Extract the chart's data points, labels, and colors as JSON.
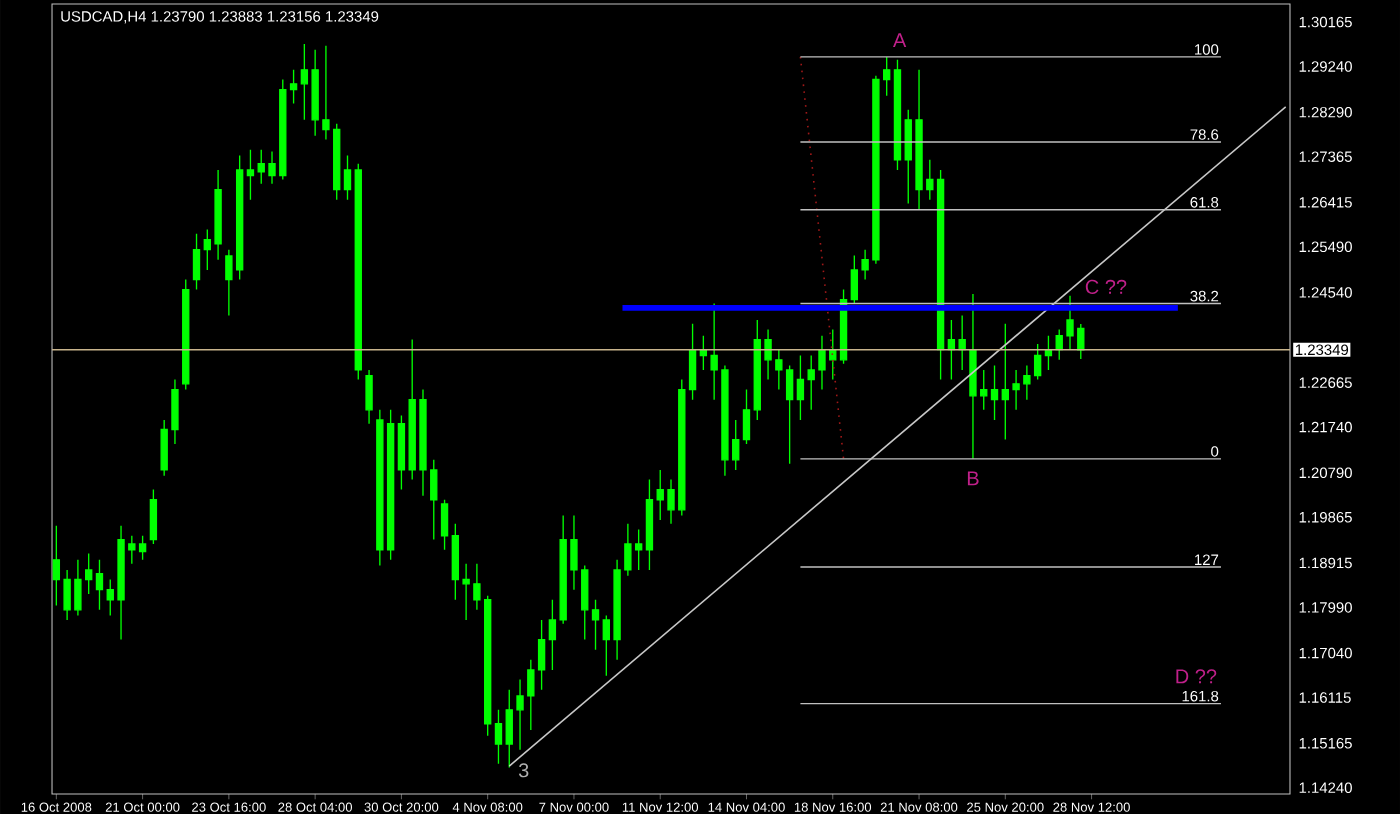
{
  "chart_data": {
    "type": "candlestick",
    "title": "USDCAD,H4 1.23790 1.23883 1.23156 1.23349",
    "categories": [
      "16 Oct 2008",
      null,
      null,
      null,
      null,
      null,
      null,
      null,
      "21 Oct 00:00",
      null,
      null,
      null,
      null,
      null,
      null,
      null,
      "23 Oct 16:00",
      null,
      null,
      null,
      null,
      null,
      null,
      null,
      "28 Oct 04:00",
      null,
      null,
      null,
      null,
      null,
      null,
      null,
      "30 Oct 20:00",
      null,
      null,
      null,
      null,
      null,
      null,
      null,
      "4 Nov 08:00",
      null,
      null,
      null,
      null,
      null,
      null,
      null,
      "7 Nov 00:00",
      null,
      null,
      null,
      null,
      null,
      null,
      null,
      "11 Nov 12:00",
      null,
      null,
      null,
      null,
      null,
      null,
      null,
      "14 Nov 04:00",
      null,
      null,
      null,
      null,
      null,
      null,
      null,
      "18 Nov 16:00",
      null,
      null,
      null,
      null,
      null,
      null,
      null,
      "21 Nov 08:00",
      null,
      null,
      null,
      null,
      null,
      null,
      null,
      "25 Nov 20:00",
      null,
      null,
      null,
      null,
      null,
      null,
      null,
      "28 Nov 12:00",
      null,
      null,
      null,
      null,
      null,
      null,
      null,
      null,
      null,
      null,
      null,
      null,
      null,
      null,
      null,
      null,
      null,
      null
    ],
    "ohlc": [
      [
        1.1857,
        1.1969,
        1.1803,
        1.1898
      ],
      [
        1.1857,
        1.1877,
        1.1773,
        1.1794
      ],
      [
        1.1794,
        1.1898,
        1.1782,
        1.1857
      ],
      [
        1.1857,
        1.1911,
        1.1827,
        1.1877
      ],
      [
        1.1869,
        1.1898,
        1.1794,
        1.1836
      ],
      [
        1.1836,
        1.1857,
        1.1782,
        1.1815
      ],
      [
        1.1815,
        1.1969,
        1.1732,
        1.194
      ],
      [
        1.1931,
        1.1948,
        1.189,
        1.1919
      ],
      [
        1.1915,
        1.1948,
        1.1898,
        1.1931
      ],
      [
        1.194,
        1.2044,
        1.1931,
        1.2023
      ],
      [
        1.2085,
        1.2189,
        1.2073,
        1.2169
      ],
      [
        1.2169,
        1.2273,
        1.2139,
        1.2252
      ],
      [
        1.2264,
        1.2481,
        1.2252,
        1.246
      ],
      [
        1.2481,
        1.2576,
        1.246,
        1.2543
      ],
      [
        1.2543,
        1.2585,
        1.2501,
        1.2564
      ],
      [
        1.2555,
        1.2709,
        1.2522,
        1.2668
      ],
      [
        1.253,
        1.2543,
        1.2406,
        1.2481
      ],
      [
        1.2501,
        1.2739,
        1.2481,
        1.2709
      ],
      [
        1.2709,
        1.2751,
        1.2647,
        1.2697
      ],
      [
        1.2705,
        1.2751,
        1.268,
        1.2722
      ],
      [
        1.2722,
        1.2747,
        1.268,
        1.2697
      ],
      [
        1.2697,
        1.2897,
        1.2689,
        1.2876
      ],
      [
        1.2876,
        1.2917,
        1.2847,
        1.2888
      ],
      [
        1.2888,
        1.2971,
        1.2813,
        1.2917
      ],
      [
        1.2917,
        1.2959,
        1.278,
        1.2813
      ],
      [
        1.2813,
        1.2967,
        1.2772,
        1.2793
      ],
      [
        1.2793,
        1.2805,
        1.2647,
        1.2668
      ],
      [
        1.2668,
        1.2739,
        1.2647,
        1.2709
      ],
      [
        1.2709,
        1.2722,
        1.2273,
        1.2293
      ],
      [
        1.2281,
        1.2293,
        1.2181,
        1.221
      ],
      [
        1.2189,
        1.221,
        1.1886,
        1.1919
      ],
      [
        1.1919,
        1.221,
        1.1898,
        1.2181
      ],
      [
        1.2181,
        1.2198,
        1.2044,
        1.2085
      ],
      [
        1.2085,
        1.2356,
        1.2065,
        1.2231
      ],
      [
        1.2231,
        1.2252,
        1.2031,
        1.2085
      ],
      [
        1.2085,
        1.2106,
        1.194,
        1.2023
      ],
      [
        1.2014,
        1.2023,
        1.1919,
        1.1948
      ],
      [
        1.1948,
        1.1973,
        1.1815,
        1.1857
      ],
      [
        1.1857,
        1.189,
        1.1773,
        1.1848
      ],
      [
        1.1848,
        1.189,
        1.1794,
        1.1815
      ],
      [
        1.1815,
        1.1823,
        1.1532,
        1.1557
      ],
      [
        1.1557,
        1.1586,
        1.1474,
        1.1515
      ],
      [
        1.1515,
        1.1628,
        1.1466,
        1.1586
      ],
      [
        1.1586,
        1.1649,
        1.1503,
        1.1615
      ],
      [
        1.1615,
        1.169,
        1.1544,
        1.1669
      ],
      [
        1.1669,
        1.1773,
        1.1628,
        1.1732
      ],
      [
        1.1732,
        1.1815,
        1.1669,
        1.1773
      ],
      [
        1.1773,
        1.199,
        1.1765,
        1.194
      ],
      [
        1.194,
        1.199,
        1.1836,
        1.1877
      ],
      [
        1.1877,
        1.1886,
        1.1732,
        1.1794
      ],
      [
        1.1794,
        1.1815,
        1.1711,
        1.1773
      ],
      [
        1.1773,
        1.1782,
        1.1657,
        1.1732
      ],
      [
        1.1732,
        1.1898,
        1.169,
        1.1877
      ],
      [
        1.1877,
        1.1973,
        1.1865,
        1.1931
      ],
      [
        1.1931,
        1.1961,
        1.1877,
        1.1919
      ],
      [
        1.1919,
        1.2065,
        1.1877,
        1.2023
      ],
      [
        1.2023,
        1.2085,
        1.1981,
        1.2044
      ],
      [
        1.2044,
        1.2065,
        1.1973,
        1.2002
      ],
      [
        1.2002,
        1.2273,
        1.199,
        1.2252
      ],
      [
        1.2252,
        1.2389,
        1.2231,
        1.2335
      ],
      [
        1.2335,
        1.2364,
        1.2293,
        1.2323
      ],
      [
        1.2323,
        1.2431,
        1.2231,
        1.2293
      ],
      [
        1.2293,
        1.2302,
        1.2073,
        1.2106
      ],
      [
        1.2106,
        1.2189,
        1.2085,
        1.2148
      ],
      [
        1.2148,
        1.2252,
        1.2139,
        1.221
      ],
      [
        1.221,
        1.2397,
        1.2189,
        1.2356
      ],
      [
        1.2356,
        1.2377,
        1.2273,
        1.2314
      ],
      [
        1.2314,
        1.2335,
        1.2252,
        1.2293
      ],
      [
        1.2293,
        1.2302,
        1.2098,
        1.2231
      ],
      [
        1.2231,
        1.2323,
        1.2189,
        1.2273
      ],
      [
        1.2273,
        1.2323,
        1.221,
        1.2293
      ],
      [
        1.2293,
        1.2364,
        1.2252,
        1.2335
      ],
      [
        1.2335,
        1.2377,
        1.2273,
        1.2314
      ],
      [
        1.2314,
        1.246,
        1.2306,
        1.2439
      ],
      [
        1.2439,
        1.2531,
        1.2431,
        1.2501
      ],
      [
        1.2501,
        1.2543,
        1.2481,
        1.2522
      ],
      [
        1.2522,
        1.2905,
        1.2514,
        1.2897
      ],
      [
        1.2897,
        1.2944,
        1.2863,
        1.2917
      ],
      [
        1.2917,
        1.2938,
        1.2709,
        1.273
      ],
      [
        1.273,
        1.2834,
        1.2639,
        1.2813
      ],
      [
        1.2813,
        1.2917,
        1.2626,
        1.2668
      ],
      [
        1.2668,
        1.273,
        1.2647,
        1.2689
      ],
      [
        1.2689,
        1.2709,
        1.2273,
        1.2335
      ],
      [
        1.2335,
        1.2397,
        1.2273,
        1.2356
      ],
      [
        1.2356,
        1.2406,
        1.2293,
        1.2335
      ],
      [
        1.2335,
        1.2451,
        1.2108,
        1.2239
      ],
      [
        1.2239,
        1.2293,
        1.221,
        1.2252
      ],
      [
        1.2252,
        1.2302,
        1.2189,
        1.2231
      ],
      [
        1.2231,
        1.2389,
        1.2148,
        1.2252
      ],
      [
        1.2252,
        1.2293,
        1.221,
        1.2264
      ],
      [
        1.2264,
        1.2302,
        1.2231,
        1.2281
      ],
      [
        1.2281,
        1.2347,
        1.2273,
        1.2323
      ],
      [
        1.2323,
        1.2364,
        1.2293,
        1.2335
      ],
      [
        1.2335,
        1.2377,
        1.2314,
        1.2364
      ],
      [
        1.2364,
        1.2447,
        1.2335,
        1.2397
      ],
      [
        1.2379,
        1.23883,
        1.23156,
        1.23349
      ],
      null,
      null,
      null,
      null,
      null,
      null,
      null,
      null,
      null,
      null,
      null,
      null,
      null,
      null,
      null,
      null,
      null,
      null,
      null
    ],
    "color": "#00ff00",
    "series": [
      {
        "type": "line",
        "color": "#c8c8c8",
        "values": [
          null,
          null,
          null,
          null,
          null,
          null,
          null,
          null,
          null,
          null,
          null,
          null,
          null,
          null,
          null,
          null,
          null,
          null,
          null,
          null,
          null,
          null,
          null,
          null,
          null,
          null,
          null,
          null,
          null,
          null,
          null,
          null,
          null,
          null,
          null,
          null,
          null,
          null,
          null,
          null,
          null,
          null,
          1.1469,
          null,
          null,
          null,
          null,
          null,
          null,
          null,
          null,
          null,
          null,
          null,
          null,
          null,
          null,
          null,
          null,
          null,
          null,
          null,
          null,
          null,
          null,
          null,
          null,
          null,
          null,
          null,
          null,
          null,
          null,
          null,
          null,
          null,
          null,
          null,
          null,
          null,
          null,
          null,
          null,
          null,
          null,
          null,
          null,
          null,
          null,
          null,
          null,
          null,
          null,
          null,
          null,
          null,
          null,
          null,
          null,
          null,
          null,
          null,
          null,
          null,
          null,
          null,
          null,
          null,
          null,
          null,
          null,
          null,
          null,
          null,
          1.284
        ]
      },
      {
        "type": "line",
        "color": "#a01818",
        "line_style": "dotted",
        "values": [
          null,
          null,
          null,
          null,
          null,
          null,
          null,
          null,
          null,
          null,
          null,
          null,
          null,
          null,
          null,
          null,
          null,
          null,
          null,
          null,
          null,
          null,
          null,
          null,
          null,
          null,
          null,
          null,
          null,
          null,
          null,
          null,
          null,
          null,
          null,
          null,
          null,
          null,
          null,
          null,
          null,
          null,
          null,
          null,
          null,
          null,
          null,
          null,
          null,
          null,
          null,
          null,
          null,
          null,
          null,
          null,
          null,
          null,
          null,
          null,
          null,
          null,
          null,
          null,
          null,
          null,
          null,
          null,
          null,
          1.2944,
          null,
          null,
          null,
          1.2108,
          null,
          null,
          null,
          null,
          null,
          null,
          null,
          null,
          null,
          null,
          null,
          null,
          null,
          null,
          null,
          null,
          null,
          null,
          null,
          null,
          null,
          null,
          null,
          null,
          null,
          null,
          null,
          null,
          null,
          null,
          null,
          null,
          null,
          null,
          null,
          null,
          null,
          null,
          null,
          null,
          null
        ]
      }
    ],
    "ylim": [
      1.1411,
      1.3054
    ],
    "yticks": [
      1.30165,
      {
        "value": 1.2924,
        "label": "1.29240"
      },
      {
        "value": 1.2829,
        "label": "1.28290"
      },
      1.27365,
      1.26415,
      {
        "value": 1.2549,
        "label": "1.25490"
      },
      {
        "value": 1.2454,
        "label": "1.24540"
      },
      1.22665,
      {
        "value": 1.2174,
        "label": "1.21740"
      },
      {
        "value": 1.2079,
        "label": "1.20790"
      },
      1.19865,
      1.18915,
      {
        "value": 1.1799,
        "label": "1.17990"
      },
      {
        "value": 1.1704,
        "label": "1.17040"
      },
      1.16115,
      1.15165,
      {
        "value": 1.1424,
        "label": "1.14240"
      }
    ],
    "ref_lines": [
      {
        "axis": "y",
        "value": 1.2422,
        "color": "#0000ff"
      },
      {
        "axis": "y",
        "value": 1.2944,
        "color": "#c0c0c0"
      },
      {
        "axis": "y",
        "value": 1.2767,
        "color": "#c0c0c0"
      },
      {
        "axis": "y",
        "value": 1.2626,
        "color": "#c0c0c0"
      },
      {
        "axis": "y",
        "value": 1.2431,
        "color": "#c0c0c0"
      },
      {
        "axis": "y",
        "value": 1.2108,
        "color": "#c0c0c0"
      },
      {
        "axis": "y",
        "value": 1.1883,
        "color": "#c0c0c0"
      },
      {
        "axis": "y",
        "value": 1.1599,
        "color": "#c0c0c0"
      },
      {
        "axis": "y",
        "value": 1.23349,
        "label": "1.23349",
        "color": "#c8b48c"
      }
    ],
    "annotations": [
      {
        "text": "A",
        "y": 1.2944
      },
      {
        "text": "B",
        "y": 1.2108
      },
      {
        "text": "C ??",
        "y": 1.2447
      },
      "D ??",
      "3",
      {
        "text": "100",
        "y": 1.2944
      },
      {
        "text": "78.6",
        "y": 1.2767
      },
      {
        "text": "61.8",
        "y": 1.2626
      },
      {
        "text": "38.2",
        "y": 1.2431
      },
      {
        "text": "0",
        "y": 1.2108
      },
      {
        "text": "127",
        "y": 1.1883
      },
      {
        "text": "161.8",
        "y": 1.1599
      }
    ]
  }
}
